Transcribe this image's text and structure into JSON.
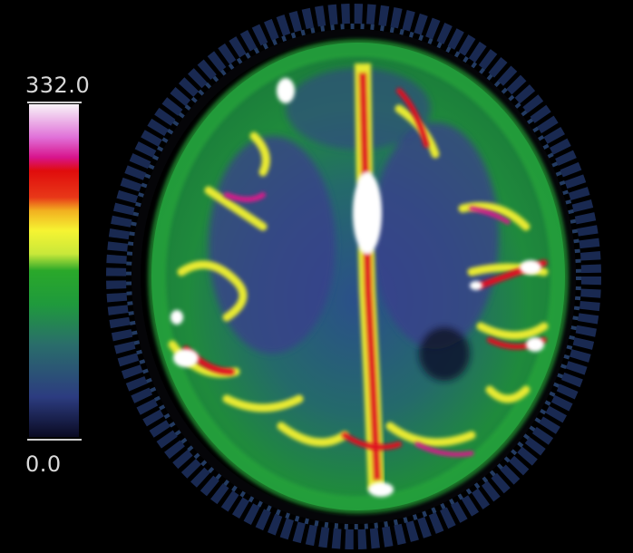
{
  "viewer": {
    "scale_max": "332.0",
    "scale_min": "0.0"
  },
  "colormap": {
    "stops": [
      "#0a0a2a",
      "#2a3a7a",
      "#1e6a5a",
      "#1f9a3a",
      "#7ad63a",
      "#f2f23a",
      "#f28a1a",
      "#e81010",
      "#d81a8a",
      "#f2c0f0",
      "#ffffff"
    ]
  },
  "image": {
    "background": "#000000"
  }
}
